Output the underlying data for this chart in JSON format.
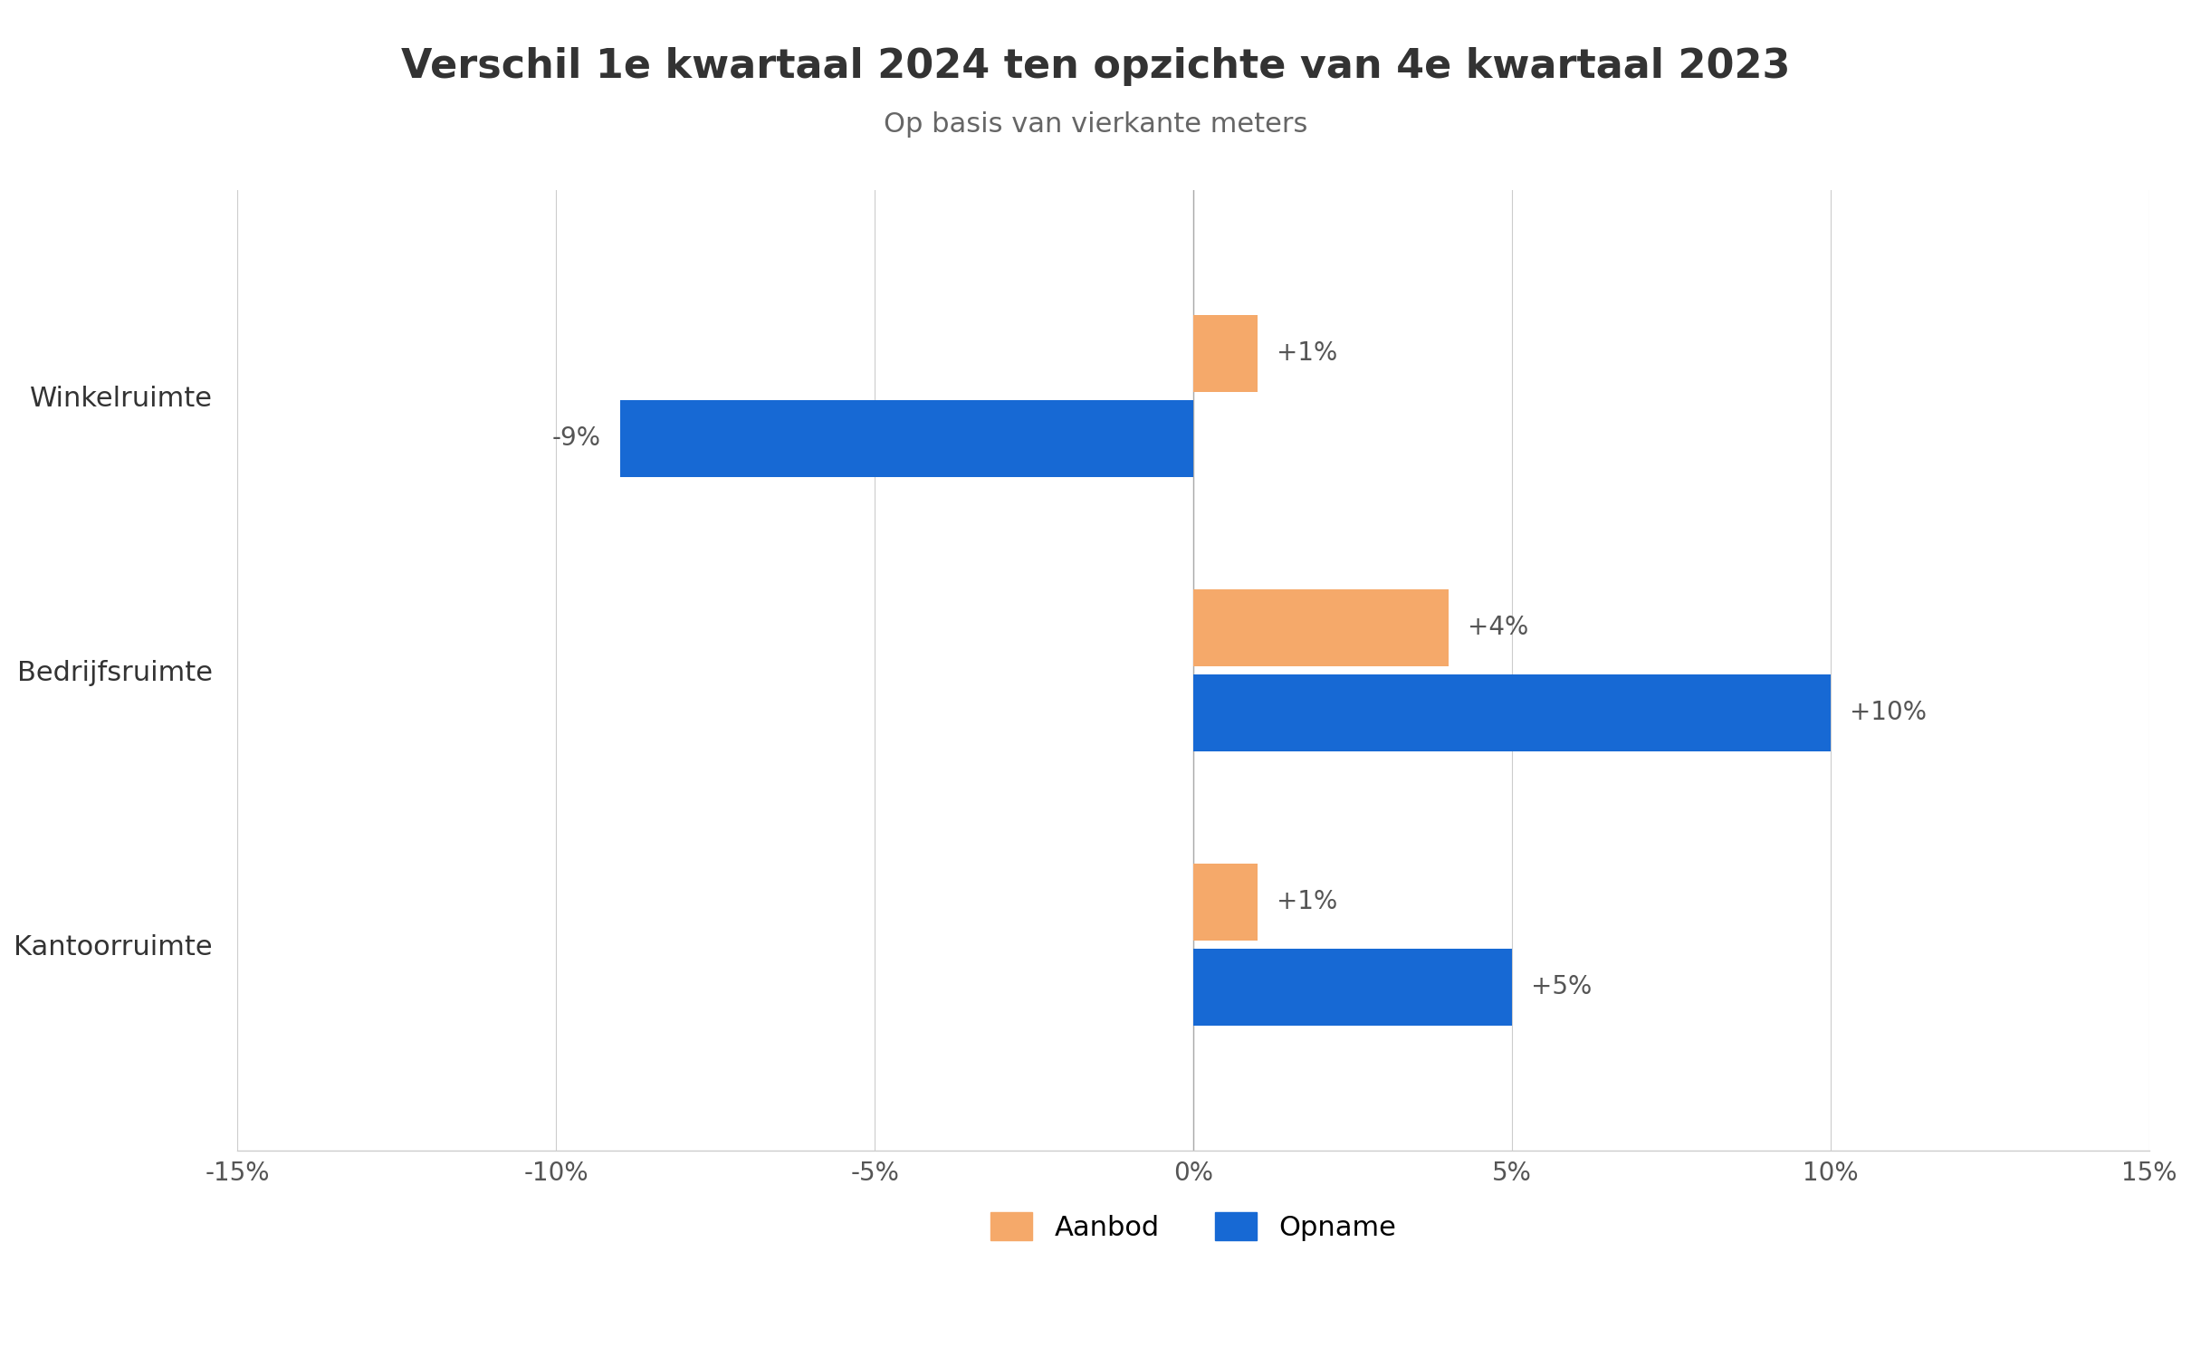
{
  "title": "Verschil 1e kwartaal 2024 ten opzichte van 4e kwartaal 2023",
  "subtitle": "Op basis van vierkante meters",
  "categories": [
    "Kantoorruimte",
    "Bedrijfsruimte",
    "Winkelruimte"
  ],
  "aanbod": [
    1,
    4,
    1
  ],
  "opname": [
    5,
    10,
    -9
  ],
  "aanbod_labels": [
    "+1%",
    "+4%",
    "+1%"
  ],
  "opname_labels": [
    "+5%",
    "+10%",
    "-9%"
  ],
  "aanbod_color": "#F5A96A",
  "opname_color": "#1769D4",
  "xlim": [
    -15,
    15
  ],
  "xticks": [
    -15,
    -10,
    -5,
    0,
    5,
    10,
    15
  ],
  "xticklabels": [
    "-15%",
    "-10%",
    "-5%",
    "0%",
    "5%",
    "10%",
    "15%"
  ],
  "background_color": "#ffffff",
  "title_fontsize": 32,
  "subtitle_fontsize": 22,
  "label_fontsize": 20,
  "tick_fontsize": 20,
  "legend_fontsize": 22,
  "bar_height": 0.28,
  "bar_gap": 0.03
}
